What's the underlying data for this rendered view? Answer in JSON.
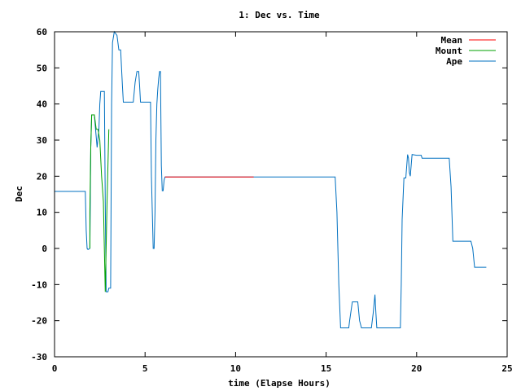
{
  "chart_data": {
    "type": "line",
    "title": "1: Dec vs. Time",
    "xlabel": "time (Elapse Hours)",
    "ylabel": "Dec",
    "xlim": [
      0,
      25
    ],
    "ylim": [
      -30,
      60
    ],
    "xticks": [
      0,
      5,
      10,
      15,
      20,
      25
    ],
    "yticks": [
      -30,
      -20,
      -10,
      0,
      10,
      20,
      30,
      40,
      50,
      60
    ],
    "grid": false,
    "legend_position": "top-right",
    "series": [
      {
        "name": "Mean",
        "color": "#ff0000",
        "points": [
          [
            6.1,
            19.8
          ],
          [
            11.0,
            19.8
          ]
        ]
      },
      {
        "name": "Mount",
        "color": "#00a000",
        "points": [
          [
            1.95,
            0
          ],
          [
            1.95,
            10
          ],
          [
            2.0,
            28
          ],
          [
            2.05,
            37
          ],
          [
            2.15,
            37
          ],
          [
            2.2,
            37
          ],
          [
            2.3,
            33
          ],
          [
            2.4,
            33
          ],
          [
            2.5,
            30
          ],
          [
            2.6,
            20
          ],
          [
            2.7,
            13
          ],
          [
            2.8,
            -12
          ],
          [
            2.9,
            13
          ],
          [
            3.0,
            33
          ]
        ]
      },
      {
        "name": "Ape",
        "color": "#0070c0",
        "points": [
          [
            0.0,
            15.8
          ],
          [
            1.7,
            15.8
          ],
          [
            1.75,
            5
          ],
          [
            1.8,
            0
          ],
          [
            1.85,
            -0.3
          ],
          [
            1.95,
            0
          ],
          [
            2.0,
            28
          ],
          [
            2.05,
            37
          ],
          [
            2.2,
            37
          ],
          [
            2.25,
            34
          ],
          [
            2.35,
            28
          ],
          [
            2.45,
            33
          ],
          [
            2.5,
            40
          ],
          [
            2.55,
            43.5
          ],
          [
            2.75,
            43.5
          ],
          [
            2.8,
            13
          ],
          [
            2.85,
            -12
          ],
          [
            2.95,
            -12
          ],
          [
            3.0,
            -11
          ],
          [
            3.1,
            -11
          ],
          [
            3.15,
            40
          ],
          [
            3.2,
            57
          ],
          [
            3.3,
            60
          ],
          [
            3.45,
            59
          ],
          [
            3.55,
            55
          ],
          [
            3.65,
            55
          ],
          [
            3.75,
            45
          ],
          [
            3.8,
            40.5
          ],
          [
            4.35,
            40.5
          ],
          [
            4.45,
            46
          ],
          [
            4.55,
            49
          ],
          [
            4.65,
            49
          ],
          [
            4.7,
            45
          ],
          [
            4.75,
            40.5
          ],
          [
            5.3,
            40.5
          ],
          [
            5.35,
            20
          ],
          [
            5.4,
            10
          ],
          [
            5.45,
            0
          ],
          [
            5.5,
            0
          ],
          [
            5.55,
            10
          ],
          [
            5.6,
            30
          ],
          [
            5.65,
            40
          ],
          [
            5.7,
            44
          ],
          [
            5.75,
            47
          ],
          [
            5.8,
            49
          ],
          [
            5.85,
            49
          ],
          [
            5.9,
            23
          ],
          [
            5.95,
            16
          ],
          [
            6.0,
            16
          ],
          [
            6.05,
            19
          ],
          [
            6.1,
            19.8
          ],
          [
            15.5,
            19.8
          ],
          [
            15.6,
            10
          ],
          [
            15.7,
            -10
          ],
          [
            15.8,
            -22
          ],
          [
            16.25,
            -22
          ],
          [
            16.3,
            -20
          ],
          [
            16.45,
            -14.8
          ],
          [
            16.75,
            -14.8
          ],
          [
            16.85,
            -20
          ],
          [
            16.95,
            -22
          ],
          [
            17.5,
            -22
          ],
          [
            17.6,
            -18
          ],
          [
            17.7,
            -12.8
          ],
          [
            17.75,
            -18
          ],
          [
            17.8,
            -22
          ],
          [
            19.1,
            -22
          ],
          [
            19.15,
            -10
          ],
          [
            19.2,
            8
          ],
          [
            19.3,
            19.5
          ],
          [
            19.4,
            19.5
          ],
          [
            19.5,
            26
          ],
          [
            19.55,
            25
          ],
          [
            19.6,
            21
          ],
          [
            19.65,
            20
          ],
          [
            19.75,
            26
          ],
          [
            20.0,
            25.8
          ],
          [
            20.25,
            25.8
          ],
          [
            20.3,
            25
          ],
          [
            21.8,
            25
          ],
          [
            21.9,
            17
          ],
          [
            22.0,
            2
          ],
          [
            23.0,
            2
          ],
          [
            23.1,
            0
          ],
          [
            23.2,
            -5.2
          ],
          [
            23.85,
            -5.2
          ]
        ]
      }
    ]
  }
}
